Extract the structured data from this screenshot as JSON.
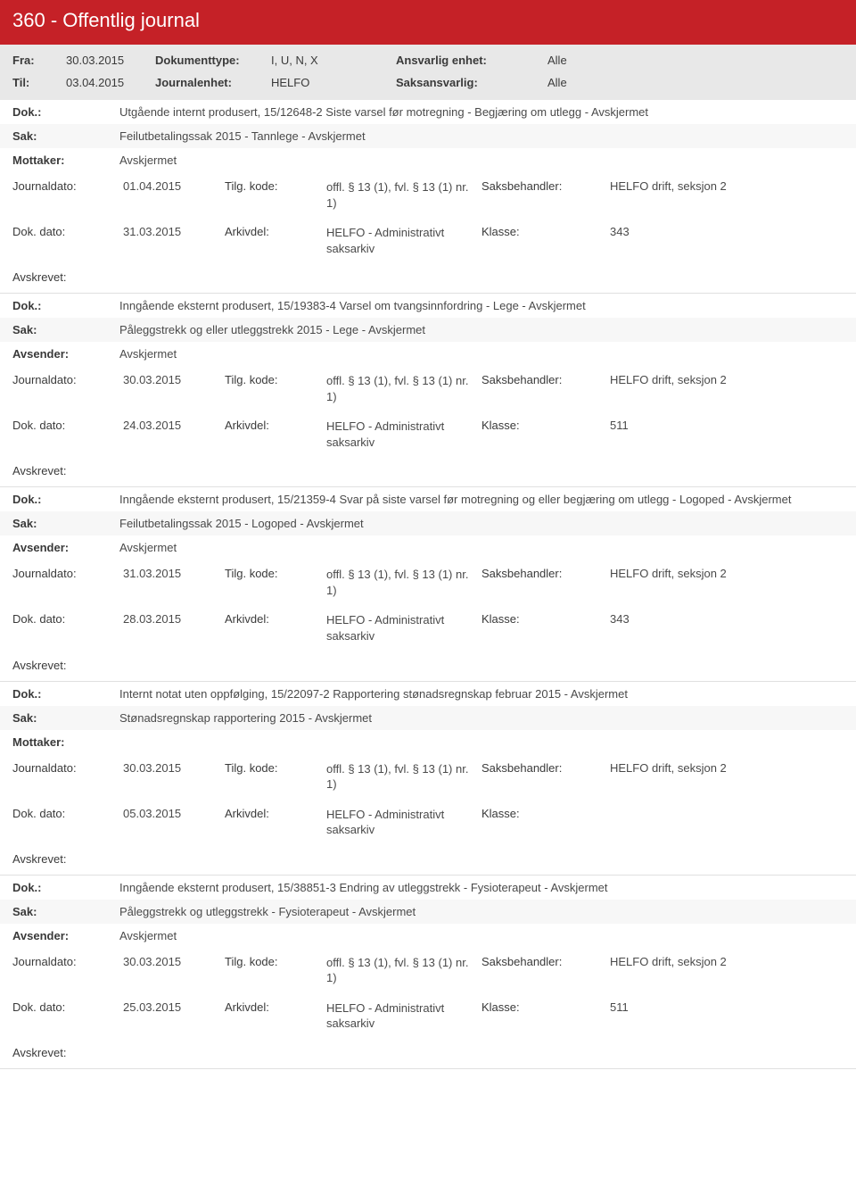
{
  "header": {
    "title": "360 - Offentlig journal"
  },
  "filter": {
    "fra_label": "Fra:",
    "fra_value": "30.03.2015",
    "til_label": "Til:",
    "til_value": "03.04.2015",
    "dokumenttype_label": "Dokumenttype:",
    "dokumenttype_value": "I, U, N, X",
    "journalenhet_label": "Journalenhet:",
    "journalenhet_value": "HELFO",
    "ansvarlig_enhet_label": "Ansvarlig enhet:",
    "ansvarlig_enhet_value": "Alle",
    "saksansvarlig_label": "Saksansvarlig:",
    "saksansvarlig_value": "Alle"
  },
  "labels": {
    "dok": "Dok.:",
    "sak": "Sak:",
    "mottaker": "Mottaker:",
    "avsender": "Avsender:",
    "journaldato": "Journaldato:",
    "tilg_kode": "Tilg. kode:",
    "saksbehandler": "Saksbehandler:",
    "dok_dato": "Dok. dato:",
    "arkivdel": "Arkivdel:",
    "klasse": "Klasse:",
    "avskrevet": "Avskrevet:"
  },
  "common": {
    "tilg_kode_value": "offl. § 13 (1), fvl. § 13 (1) nr. 1)",
    "arkivdel_value": "HELFO - Administrativt saksarkiv",
    "saksbehandler_value": "HELFO drift, seksjon 2",
    "avskjermet": "Avskjermet"
  },
  "entries": [
    {
      "dok": "Utgående internt produsert, 15/12648-2 Siste varsel før motregning - Begjæring om utlegg - Avskjermet",
      "sak": "Feilutbetalingssak 2015 - Tannlege - Avskjermet",
      "party_label": "Mottaker:",
      "party_value": "Avskjermet",
      "journaldato": "01.04.2015",
      "dok_dato": "31.03.2015",
      "klasse": "343"
    },
    {
      "dok": "Inngående eksternt produsert, 15/19383-4 Varsel om tvangsinnfordring - Lege - Avskjermet",
      "sak": "Påleggstrekk og eller utleggstrekk 2015 - Lege - Avskjermet",
      "party_label": "Avsender:",
      "party_value": "Avskjermet",
      "journaldato": "30.03.2015",
      "dok_dato": "24.03.2015",
      "klasse": "511"
    },
    {
      "dok": "Inngående eksternt produsert, 15/21359-4 Svar på siste varsel før motregning og eller begjæring om utlegg - Logoped - Avskjermet",
      "sak": "Feilutbetalingssak 2015 - Logoped - Avskjermet",
      "party_label": "Avsender:",
      "party_value": "Avskjermet",
      "journaldato": "31.03.2015",
      "dok_dato": "28.03.2015",
      "klasse": "343"
    },
    {
      "dok": "Internt notat uten oppfølging, 15/22097-2 Rapportering stønadsregnskap februar 2015 - Avskjermet",
      "sak": "Stønadsregnskap rapportering 2015 - Avskjermet",
      "party_label": "Mottaker:",
      "party_value": "",
      "journaldato": "30.03.2015",
      "dok_dato": "05.03.2015",
      "klasse": ""
    },
    {
      "dok": "Inngående eksternt produsert, 15/38851-3 Endring av utleggstrekk - Fysioterapeut - Avskjermet",
      "sak": "Påleggstrekk og utleggstrekk - Fysioterapeut - Avskjermet",
      "party_label": "Avsender:",
      "party_value": "Avskjermet",
      "journaldato": "30.03.2015",
      "dok_dato": "25.03.2015",
      "klasse": "511"
    }
  ]
}
